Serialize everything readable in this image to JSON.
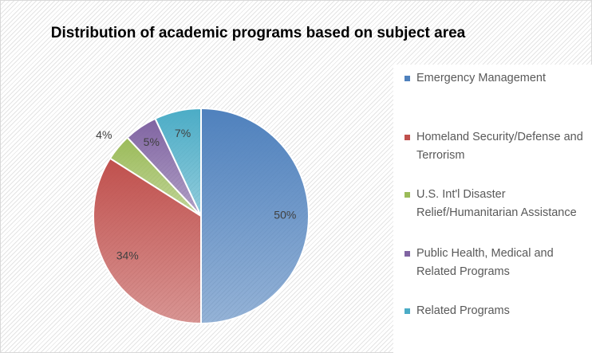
{
  "chart_data": {
    "type": "pie",
    "title": "Distribution of academic programs based on subject area",
    "categories": [
      "Emergency Management",
      "Homeland Security/Defense and Terrorism",
      "U.S. Int'l Disaster Relief/Humanitarian Assistance",
      "Public Health, Medical and Related Programs",
      "Related Programs"
    ],
    "values": [
      50,
      34,
      4,
      5,
      7
    ],
    "value_labels": [
      "50%",
      "34%",
      "4%",
      "5%",
      "7%"
    ],
    "colors": [
      "#4f81bd",
      "#c0504d",
      "#9bbb59",
      "#8064a2",
      "#4bacc6"
    ],
    "legend": "right"
  }
}
